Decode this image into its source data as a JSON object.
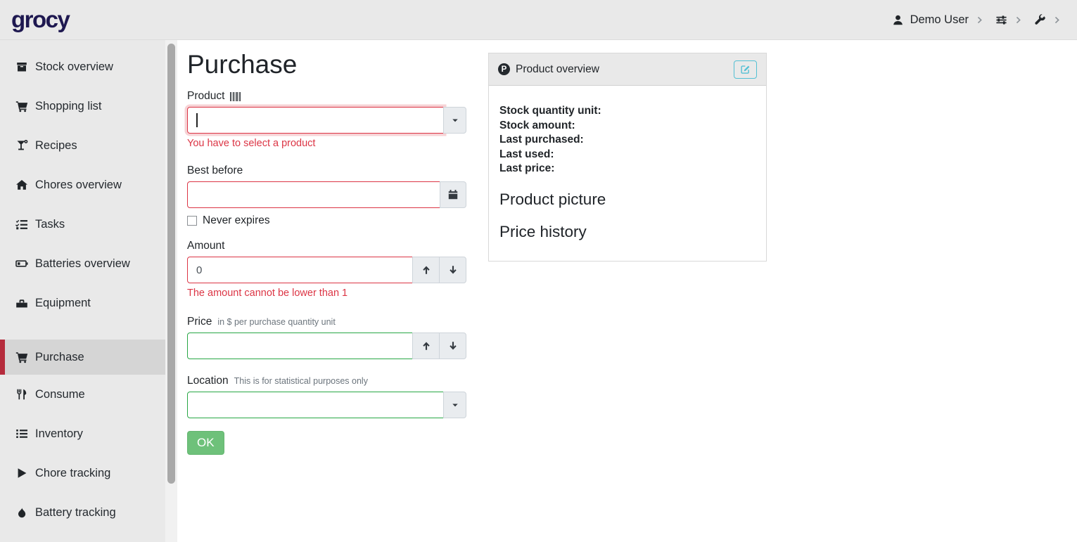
{
  "colors": {
    "navbar_bg": "#e9e9e9",
    "sidebar_bg": "#e9e9e9",
    "active_item_bg": "#d5d5d5",
    "active_accent_red": "#b52b3c",
    "danger": "#dc3545",
    "valid_green": "#28a745",
    "ok_button_green": "#6ec17a",
    "info_teal": "#53c0d4",
    "logo_navy": "#1e1850"
  },
  "navbar": {
    "logo": "grocy",
    "user": {
      "label": "Demo User",
      "icon": "user-icon"
    },
    "icons": [
      "sliders-icon",
      "wrench-icon"
    ]
  },
  "sidebar": {
    "items": [
      {
        "label": "Stock overview",
        "icon": "boxes",
        "active": false,
        "group_start": false
      },
      {
        "label": "Shopping list",
        "icon": "shopping-cart",
        "active": false,
        "group_start": false
      },
      {
        "label": "Recipes",
        "icon": "cocktail",
        "active": false,
        "group_start": false
      },
      {
        "label": "Chores overview",
        "icon": "home",
        "active": false,
        "group_start": false
      },
      {
        "label": "Tasks",
        "icon": "tasks",
        "active": false,
        "group_start": false
      },
      {
        "label": "Batteries overview",
        "icon": "battery",
        "active": false,
        "group_start": false
      },
      {
        "label": "Equipment",
        "icon": "toolbox",
        "active": false,
        "group_start": false
      },
      {
        "label": "Purchase",
        "icon": "shopping-cart",
        "active": true,
        "group_start": true
      },
      {
        "label": "Consume",
        "icon": "utensils",
        "active": false,
        "group_start": false
      },
      {
        "label": "Inventory",
        "icon": "list",
        "active": false,
        "group_start": false
      },
      {
        "label": "Chore tracking",
        "icon": "play",
        "active": false,
        "group_start": false
      },
      {
        "label": "Battery tracking",
        "icon": "droplet",
        "active": false,
        "group_start": false
      }
    ]
  },
  "form": {
    "title": "Purchase",
    "product": {
      "label": "Product",
      "value": "",
      "error": "You have to select a product"
    },
    "best_before": {
      "label": "Best before",
      "value": "",
      "never_expires_label": "Never expires",
      "never_expires_checked": false
    },
    "amount": {
      "label": "Amount",
      "value": "0",
      "error": "The amount cannot be lower than 1"
    },
    "price": {
      "label": "Price",
      "hint": "in $ per purchase quantity unit",
      "value": ""
    },
    "location": {
      "label": "Location",
      "hint": "This is for statistical purposes only",
      "value": ""
    },
    "ok_label": "OK"
  },
  "overview_card": {
    "title": "Product overview",
    "icon_letter": "P",
    "fields": [
      "Stock quantity unit:",
      "Stock amount:",
      "Last purchased:",
      "Last used:",
      "Last price:"
    ],
    "sections": [
      "Product picture",
      "Price history"
    ]
  }
}
